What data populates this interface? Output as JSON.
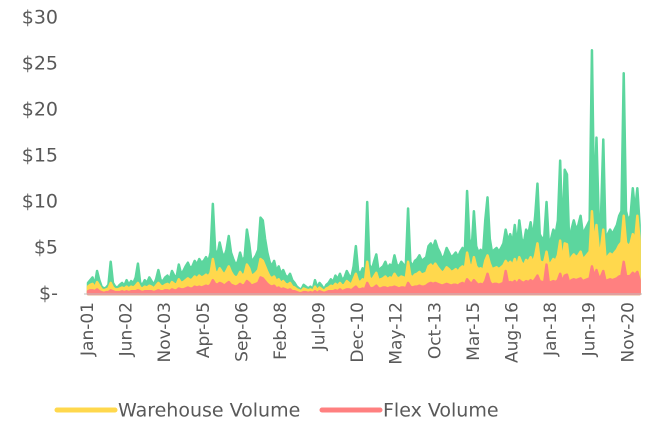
{
  "chart_data": {
    "type": "area",
    "categories": [
      "Jan-01",
      null,
      null,
      null,
      null,
      null,
      null,
      null,
      null,
      null,
      null,
      null,
      null,
      null,
      null,
      null,
      null,
      "Jun-02",
      null,
      null,
      null,
      null,
      null,
      null,
      null,
      null,
      null,
      null,
      null,
      null,
      null,
      null,
      null,
      null,
      "Nov-03",
      null,
      null,
      null,
      null,
      null,
      null,
      null,
      null,
      null,
      null,
      null,
      null,
      null,
      null,
      null,
      null,
      "Apr-05",
      null,
      null,
      null,
      null,
      null,
      null,
      null,
      null,
      null,
      null,
      null,
      null,
      null,
      null,
      null,
      null,
      "Sep-06",
      null,
      null,
      null,
      null,
      null,
      null,
      null,
      null,
      null,
      null,
      null,
      null,
      null,
      null,
      null,
      null,
      "Feb-08",
      null,
      null,
      null,
      null,
      null,
      null,
      null,
      null,
      null,
      null,
      null,
      null,
      null,
      null,
      null,
      null,
      "Jul-09",
      null,
      null,
      null,
      null,
      null,
      null,
      null,
      null,
      null,
      null,
      null,
      null,
      null,
      null,
      null,
      null,
      "Dec-10",
      null,
      null,
      null,
      null,
      null,
      null,
      null,
      null,
      null,
      null,
      null,
      null,
      null,
      null,
      null,
      null,
      "May-12",
      null,
      null,
      null,
      null,
      null,
      null,
      null,
      null,
      null,
      null,
      null,
      null,
      null,
      null,
      null,
      null,
      "Oct-13",
      null,
      null,
      null,
      null,
      null,
      null,
      null,
      null,
      null,
      null,
      null,
      null,
      null,
      null,
      null,
      null,
      "Mar-15",
      null,
      null,
      null,
      null,
      null,
      null,
      null,
      null,
      null,
      null,
      null,
      null,
      null,
      null,
      null,
      null,
      "Aug-16",
      null,
      null,
      null,
      null,
      null,
      null,
      null,
      null,
      null,
      null,
      null,
      null,
      null,
      null,
      null,
      null,
      "Jan-18",
      null,
      null,
      null,
      null,
      null,
      null,
      null,
      null,
      null,
      null,
      null,
      null,
      null,
      null,
      null,
      null,
      "Jun-19",
      null,
      null,
      null,
      null,
      null,
      null,
      null,
      null,
      null,
      null,
      null,
      null,
      null,
      null,
      null,
      null,
      "Nov-20",
      null,
      null,
      null,
      null,
      null
    ],
    "series": [
      {
        "color": "#5cd69e",
        "values": [
          1.2,
          1.5,
          1.8,
          1.0,
          2.5,
          1.5,
          0.8,
          0.6,
          0.7,
          1.0,
          3.5,
          1.2,
          0.8,
          0.7,
          1.0,
          1.2,
          0.9,
          1.5,
          1.0,
          1.4,
          1.2,
          1.8,
          3.3,
          1.2,
          1.0,
          1.5,
          1.2,
          1.8,
          1.4,
          1.0,
          1.6,
          2.6,
          1.5,
          1.4,
          1.8,
          2.0,
          1.6,
          2.5,
          2.0,
          1.8,
          3.2,
          2.2,
          2.5,
          3.0,
          3.4,
          2.8,
          3.0,
          3.6,
          3.2,
          3.8,
          3.4,
          3.6,
          4.0,
          3.5,
          4.5,
          9.8,
          4.8,
          4.2,
          5.6,
          4.5,
          4.0,
          4.8,
          6.3,
          4.5,
          3.8,
          3.2,
          3.5,
          4.5,
          3.6,
          4.0,
          7.0,
          5.5,
          3.5,
          3.8,
          4.2,
          4.8,
          8.3,
          8.0,
          6.0,
          4.5,
          3.5,
          3.0,
          3.6,
          2.5,
          3.0,
          2.2,
          2.6,
          2.0,
          1.8,
          2.2,
          1.5,
          1.2,
          0.8,
          0.6,
          0.5,
          1.0,
          0.8,
          0.6,
          0.8,
          0.5,
          1.5,
          0.7,
          1.2,
          0.9,
          0.5,
          1.0,
          1.2,
          1.6,
          1.3,
          2.0,
          1.6,
          2.2,
          1.5,
          1.8,
          2.5,
          2.0,
          1.8,
          3.0,
          5.2,
          2.5,
          2.2,
          2.8,
          2.4,
          10.0,
          3.2,
          2.6,
          3.5,
          4.3,
          2.5,
          2.8,
          3.0,
          3.5,
          2.8,
          3.2,
          3.0,
          4.2,
          3.2,
          3.0,
          3.5,
          3.2,
          3.0,
          9.3,
          3.5,
          3.0,
          3.6,
          3.8,
          4.2,
          3.6,
          3.8,
          4.0,
          5.2,
          5.5,
          5.0,
          5.8,
          5.0,
          4.5,
          3.8,
          4.2,
          5.0,
          4.5,
          4.0,
          4.2,
          4.5,
          4.0,
          4.6,
          5.0,
          4.5,
          11.2,
          6.0,
          4.8,
          9.0,
          5.2,
          4.5,
          4.8,
          4.2,
          8.0,
          10.5,
          6.0,
          4.5,
          4.8,
          5.0,
          4.6,
          5.0,
          5.5,
          7.0,
          5.8,
          6.5,
          5.5,
          7.5,
          5.2,
          8.0,
          6.0,
          5.5,
          7.0,
          6.5,
          7.8,
          6.0,
          8.5,
          12.0,
          6.5,
          6.0,
          6.2,
          10.0,
          5.5,
          6.0,
          7.0,
          6.5,
          8.0,
          14.5,
          6.0,
          13.5,
          13.0,
          5.5,
          7.0,
          8.0,
          7.0,
          7.5,
          8.5,
          6.5,
          7.0,
          7.5,
          8.0,
          26.5,
          9.0,
          17.0,
          8.0,
          8.5,
          16.8,
          6.0,
          6.5,
          7.0,
          6.5,
          7.0,
          7.5,
          8.5,
          9.0,
          24.0,
          9.0,
          8.0,
          8.5,
          11.5,
          9.0,
          11.5,
          7.5
        ]
      },
      {
        "name": "Warehouse Volume",
        "color": "#ffd84d",
        "values": [
          0.8,
          1.0,
          1.1,
          0.7,
          1.3,
          0.9,
          0.5,
          0.4,
          0.5,
          0.6,
          1.2,
          0.7,
          0.5,
          0.5,
          0.6,
          0.7,
          0.6,
          0.8,
          0.6,
          0.8,
          0.7,
          0.9,
          1.2,
          0.7,
          0.6,
          0.8,
          0.7,
          0.9,
          0.8,
          0.6,
          0.9,
          1.2,
          0.9,
          0.8,
          1.0,
          1.1,
          0.9,
          1.3,
          1.1,
          1.0,
          1.6,
          1.2,
          1.3,
          1.5,
          1.7,
          1.5,
          1.6,
          1.9,
          1.7,
          2.0,
          1.8,
          1.9,
          2.1,
          1.9,
          2.3,
          3.8,
          2.5,
          2.2,
          2.8,
          2.4,
          2.1,
          2.5,
          3.0,
          2.4,
          2.0,
          1.8,
          1.9,
          2.4,
          2.0,
          2.2,
          3.2,
          2.8,
          2.0,
          2.1,
          2.3,
          2.6,
          3.8,
          3.6,
          3.0,
          2.4,
          1.9,
          1.7,
          1.9,
          1.4,
          1.6,
          1.2,
          1.4,
          1.1,
          1.0,
          1.2,
          0.8,
          0.7,
          0.5,
          0.4,
          0.3,
          0.6,
          0.5,
          0.4,
          0.5,
          0.3,
          0.8,
          0.4,
          0.7,
          0.5,
          0.3,
          0.6,
          0.7,
          0.9,
          0.8,
          1.1,
          0.9,
          1.2,
          0.9,
          1.0,
          1.4,
          1.2,
          1.0,
          1.6,
          2.2,
          1.4,
          1.3,
          1.6,
          1.4,
          3.5,
          1.8,
          1.5,
          1.9,
          2.3,
          1.5,
          1.6,
          1.7,
          1.9,
          1.6,
          1.8,
          1.7,
          2.2,
          1.8,
          1.7,
          1.9,
          1.8,
          1.7,
          3.5,
          2.0,
          1.8,
          2.1,
          2.2,
          2.4,
          2.1,
          2.2,
          2.3,
          3.0,
          3.2,
          2.9,
          3.3,
          2.9,
          2.6,
          2.3,
          2.5,
          2.9,
          2.7,
          2.4,
          2.5,
          2.7,
          2.4,
          2.8,
          3.0,
          2.7,
          4.5,
          3.3,
          2.8,
          4.0,
          3.0,
          2.7,
          2.8,
          2.5,
          3.6,
          4.2,
          3.3,
          2.7,
          2.8,
          2.9,
          2.7,
          2.9,
          3.1,
          3.6,
          3.2,
          3.5,
          3.1,
          3.8,
          3.0,
          4.0,
          3.4,
          3.1,
          3.7,
          3.5,
          4.0,
          3.4,
          4.2,
          5.5,
          3.6,
          3.4,
          3.5,
          4.6,
          3.2,
          3.4,
          3.8,
          3.6,
          4.2,
          5.8,
          3.5,
          5.5,
          5.4,
          3.3,
          4.0,
          4.3,
          4.0,
          4.2,
          4.6,
          3.8,
          4.0,
          4.3,
          4.6,
          9.0,
          5.2,
          7.5,
          4.8,
          5.0,
          7.0,
          3.8,
          4.1,
          4.4,
          4.2,
          4.5,
          4.8,
          5.3,
          5.6,
          8.5,
          5.6,
          5.2,
          5.5,
          6.5,
          5.8,
          8.5,
          5.8
        ]
      },
      {
        "name": "Flex Volume",
        "color": "#ff8080",
        "values": [
          0.3,
          0.4,
          0.4,
          0.3,
          0.5,
          0.3,
          0.2,
          0.1,
          0.2,
          0.2,
          0.4,
          0.3,
          0.2,
          0.2,
          0.2,
          0.3,
          0.2,
          0.3,
          0.2,
          0.3,
          0.3,
          0.3,
          0.4,
          0.3,
          0.2,
          0.3,
          0.3,
          0.3,
          0.3,
          0.2,
          0.3,
          0.4,
          0.3,
          0.3,
          0.4,
          0.4,
          0.3,
          0.5,
          0.4,
          0.4,
          0.6,
          0.5,
          0.5,
          0.6,
          0.7,
          0.6,
          0.6,
          0.8,
          0.7,
          0.8,
          0.7,
          0.8,
          0.9,
          0.8,
          1.0,
          1.5,
          1.1,
          1.0,
          1.2,
          1.1,
          0.9,
          1.1,
          1.3,
          1.0,
          0.9,
          0.8,
          0.9,
          1.1,
          0.9,
          1.0,
          1.4,
          1.2,
          0.9,
          1.0,
          1.1,
          1.2,
          1.8,
          1.7,
          1.4,
          1.1,
          0.9,
          0.8,
          0.9,
          0.6,
          0.7,
          0.5,
          0.6,
          0.5,
          0.4,
          0.5,
          0.3,
          0.3,
          0.2,
          0.1,
          0.1,
          0.2,
          0.2,
          0.1,
          0.2,
          0.1,
          0.3,
          0.1,
          0.3,
          0.2,
          0.1,
          0.2,
          0.3,
          0.3,
          0.3,
          0.4,
          0.3,
          0.5,
          0.3,
          0.4,
          0.5,
          0.5,
          0.4,
          0.6,
          0.8,
          0.5,
          0.5,
          0.6,
          0.5,
          1.2,
          0.7,
          0.6,
          0.7,
          0.9,
          0.6,
          0.6,
          0.7,
          0.7,
          0.6,
          0.7,
          0.7,
          0.8,
          0.7,
          0.6,
          0.7,
          0.7,
          0.6,
          1.2,
          0.8,
          0.7,
          0.8,
          0.8,
          0.9,
          0.8,
          0.8,
          0.9,
          1.1,
          1.2,
          1.1,
          1.2,
          1.1,
          1.0,
          0.9,
          1.0,
          1.1,
          1.0,
          0.9,
          1.0,
          1.0,
          0.9,
          1.1,
          1.2,
          1.0,
          1.6,
          1.3,
          1.1,
          1.5,
          1.2,
          1.0,
          1.1,
          1.0,
          1.4,
          2.2,
          1.3,
          1.0,
          1.1,
          1.1,
          1.0,
          1.1,
          1.2,
          2.5,
          1.2,
          1.3,
          1.2,
          1.4,
          1.1,
          1.5,
          1.3,
          1.2,
          1.4,
          1.3,
          1.5,
          1.3,
          1.6,
          2.0,
          1.4,
          1.3,
          1.3,
          3.2,
          1.2,
          1.3,
          1.4,
          1.3,
          1.5,
          2.2,
          1.3,
          2.0,
          2.1,
          1.2,
          1.5,
          1.6,
          1.5,
          1.6,
          1.7,
          1.4,
          1.5,
          1.6,
          1.7,
          3.0,
          1.9,
          2.6,
          1.8,
          1.9,
          2.5,
          1.4,
          1.5,
          1.6,
          1.5,
          1.6,
          1.7,
          1.9,
          2.0,
          3.5,
          2.0,
          1.9,
          2.0,
          2.3,
          2.1,
          2.4,
          1.5
        ]
      }
    ],
    "ylim": [
      0,
      30
    ],
    "yticks": [
      {
        "value": 0,
        "label": "$-"
      },
      {
        "value": 5,
        "label": "$5"
      },
      {
        "value": 10,
        "label": "$10"
      },
      {
        "value": 15,
        "label": "$15"
      },
      {
        "value": 20,
        "label": "$20"
      },
      {
        "value": 25,
        "label": "$25"
      },
      {
        "value": 30,
        "label": "$30"
      }
    ],
    "grid": false,
    "legend": "bottom"
  }
}
